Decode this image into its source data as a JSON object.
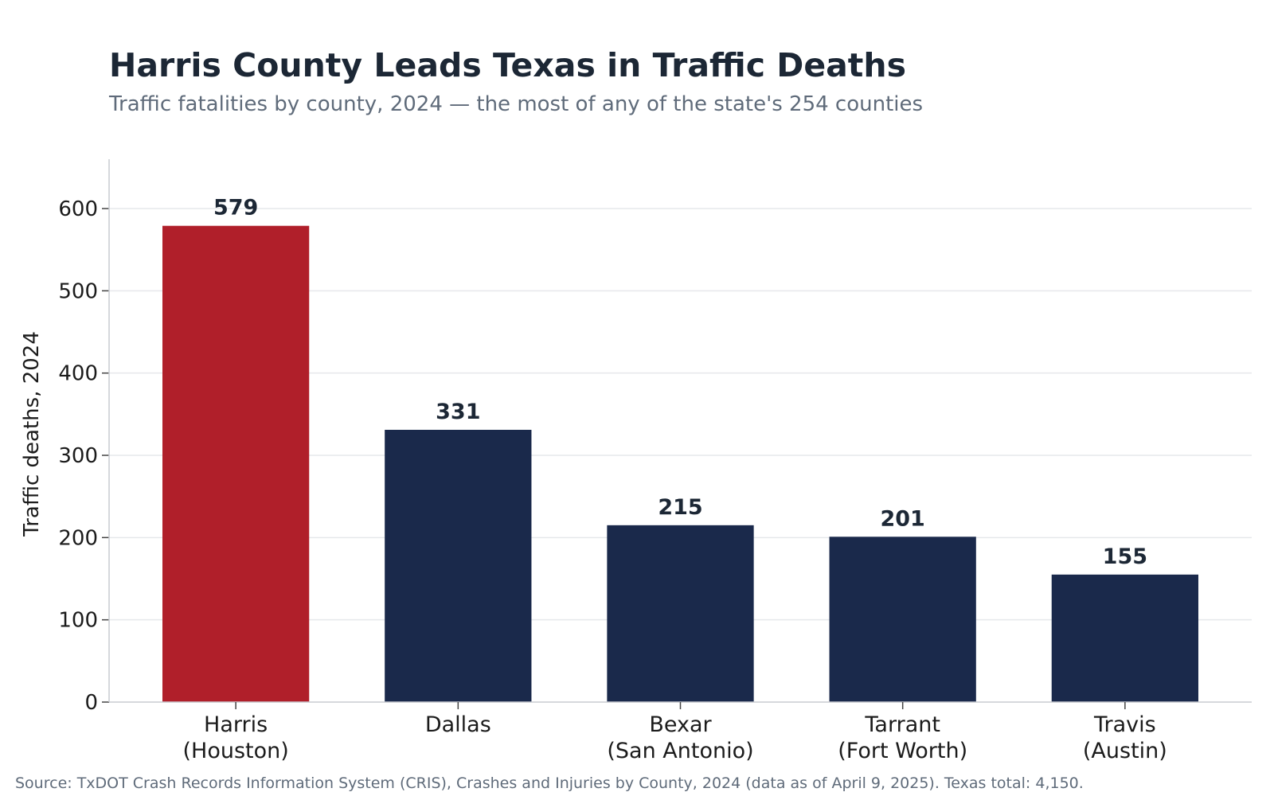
{
  "chart_data": {
    "type": "bar",
    "title": "Harris County Leads Texas in Traffic Deaths",
    "subtitle": "Traffic fatalities by county, 2024 — the most of any of the state's 254 counties",
    "categories": [
      [
        "Harris",
        "(Houston)"
      ],
      [
        "Dallas"
      ],
      [
        "Bexar",
        "(San Antonio)"
      ],
      [
        "Tarrant",
        "(Fort Worth)"
      ],
      [
        "Travis",
        "(Austin)"
      ]
    ],
    "values": [
      579,
      331,
      215,
      201,
      155
    ],
    "value_labels": [
      "579",
      "331",
      "215",
      "201",
      "155"
    ],
    "ylabel": "Traffic deaths, 2024",
    "xlabel": "",
    "ylim": [
      0,
      660
    ],
    "yticks": [
      0,
      100,
      200,
      300,
      400,
      500,
      600
    ],
    "grid": true,
    "legend": "none",
    "colors": {
      "highlight": "#b01f2a",
      "default": "#1a294b",
      "grid": "#e6e8eb",
      "axis": "#c9ccd1"
    },
    "highlight_index": 0
  },
  "source": "Source: TxDOT Crash Records Information System (CRIS), Crashes and Injuries by County, 2024 (data as of April 9, 2025). Texas total: 4,150."
}
